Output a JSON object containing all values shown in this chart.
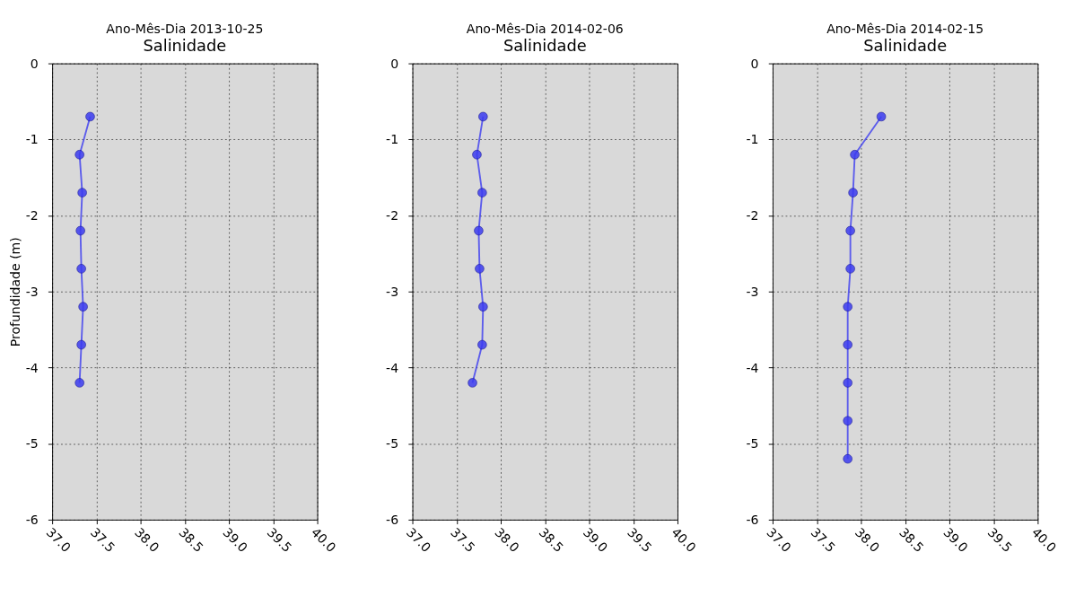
{
  "chart_data": [
    {
      "type": "line",
      "title": "Ano-Mês-Dia 2013-10-25",
      "subtitle": "Salinidade",
      "ylabel": "Profundidade (m)",
      "xlim": [
        37.0,
        40.0
      ],
      "xticks": [
        {
          "value": 37,
          "label": "37.0"
        },
        37.5,
        {
          "value": 38,
          "label": "38.0"
        },
        38.5,
        {
          "value": 39,
          "label": "39.0"
        },
        39.5,
        {
          "value": 40,
          "label": "40.0"
        }
      ],
      "ylim": [
        -6,
        0
      ],
      "yticks": [
        -6,
        -5,
        -4,
        -3,
        -2,
        -1,
        0
      ],
      "grid": true,
      "marker": "circle",
      "line_style": "solid",
      "series": [
        {
          "color": "#3c3cf0",
          "x": [
            37.43,
            37.31,
            37.34,
            37.32,
            37.33,
            37.35,
            37.33,
            37.31
          ],
          "values": [
            -0.7,
            -1.2,
            -1.7,
            -2.2,
            -2.7,
            -3.2,
            -3.7,
            -4.2
          ]
        }
      ]
    },
    {
      "type": "line",
      "title": "Ano-Mês-Dia 2014-02-06",
      "subtitle": "Salinidade",
      "xlim": [
        37.0,
        40.0
      ],
      "xticks": [
        {
          "value": 37,
          "label": "37.0"
        },
        37.5,
        {
          "value": 38,
          "label": "38.0"
        },
        38.5,
        {
          "value": 39,
          "label": "39.0"
        },
        39.5,
        {
          "value": 40,
          "label": "40.0"
        }
      ],
      "ylim": [
        -6,
        0
      ],
      "yticks": [
        -6,
        -5,
        -4,
        -3,
        -2,
        -1,
        0
      ],
      "grid": true,
      "marker": "circle",
      "line_style": "solid",
      "series": [
        {
          "color": "#3c3cf0",
          "x": [
            37.8,
            37.73,
            37.79,
            37.75,
            37.76,
            37.8,
            37.79,
            37.68
          ],
          "values": [
            -0.7,
            -1.2,
            -1.7,
            -2.2,
            -2.7,
            -3.2,
            -3.7,
            -4.2
          ]
        }
      ]
    },
    {
      "type": "line",
      "title": "Ano-Mês-Dia 2014-02-15",
      "subtitle": "Salinidade",
      "xlim": [
        37.0,
        40.0
      ],
      "xticks": [
        {
          "value": 37,
          "label": "37.0"
        },
        37.5,
        {
          "value": 38,
          "label": "38.0"
        },
        38.5,
        {
          "value": 39,
          "label": "39.0"
        },
        39.5,
        {
          "value": 40,
          "label": "40.0"
        }
      ],
      "ylim": [
        -6,
        0
      ],
      "yticks": [
        -6,
        -5,
        -4,
        -3,
        -2,
        -1,
        0
      ],
      "grid": true,
      "marker": "circle",
      "line_style": "solid",
      "series": [
        {
          "color": "#3c3cf0",
          "x": [
            38.23,
            37.93,
            37.91,
            37.88,
            37.88,
            37.85,
            37.85,
            37.85,
            37.85,
            37.85
          ],
          "values": [
            -0.7,
            -1.2,
            -1.7,
            -2.2,
            -2.7,
            -3.2,
            -3.7,
            -4.2,
            -4.7,
            -5.2
          ]
        }
      ]
    }
  ]
}
